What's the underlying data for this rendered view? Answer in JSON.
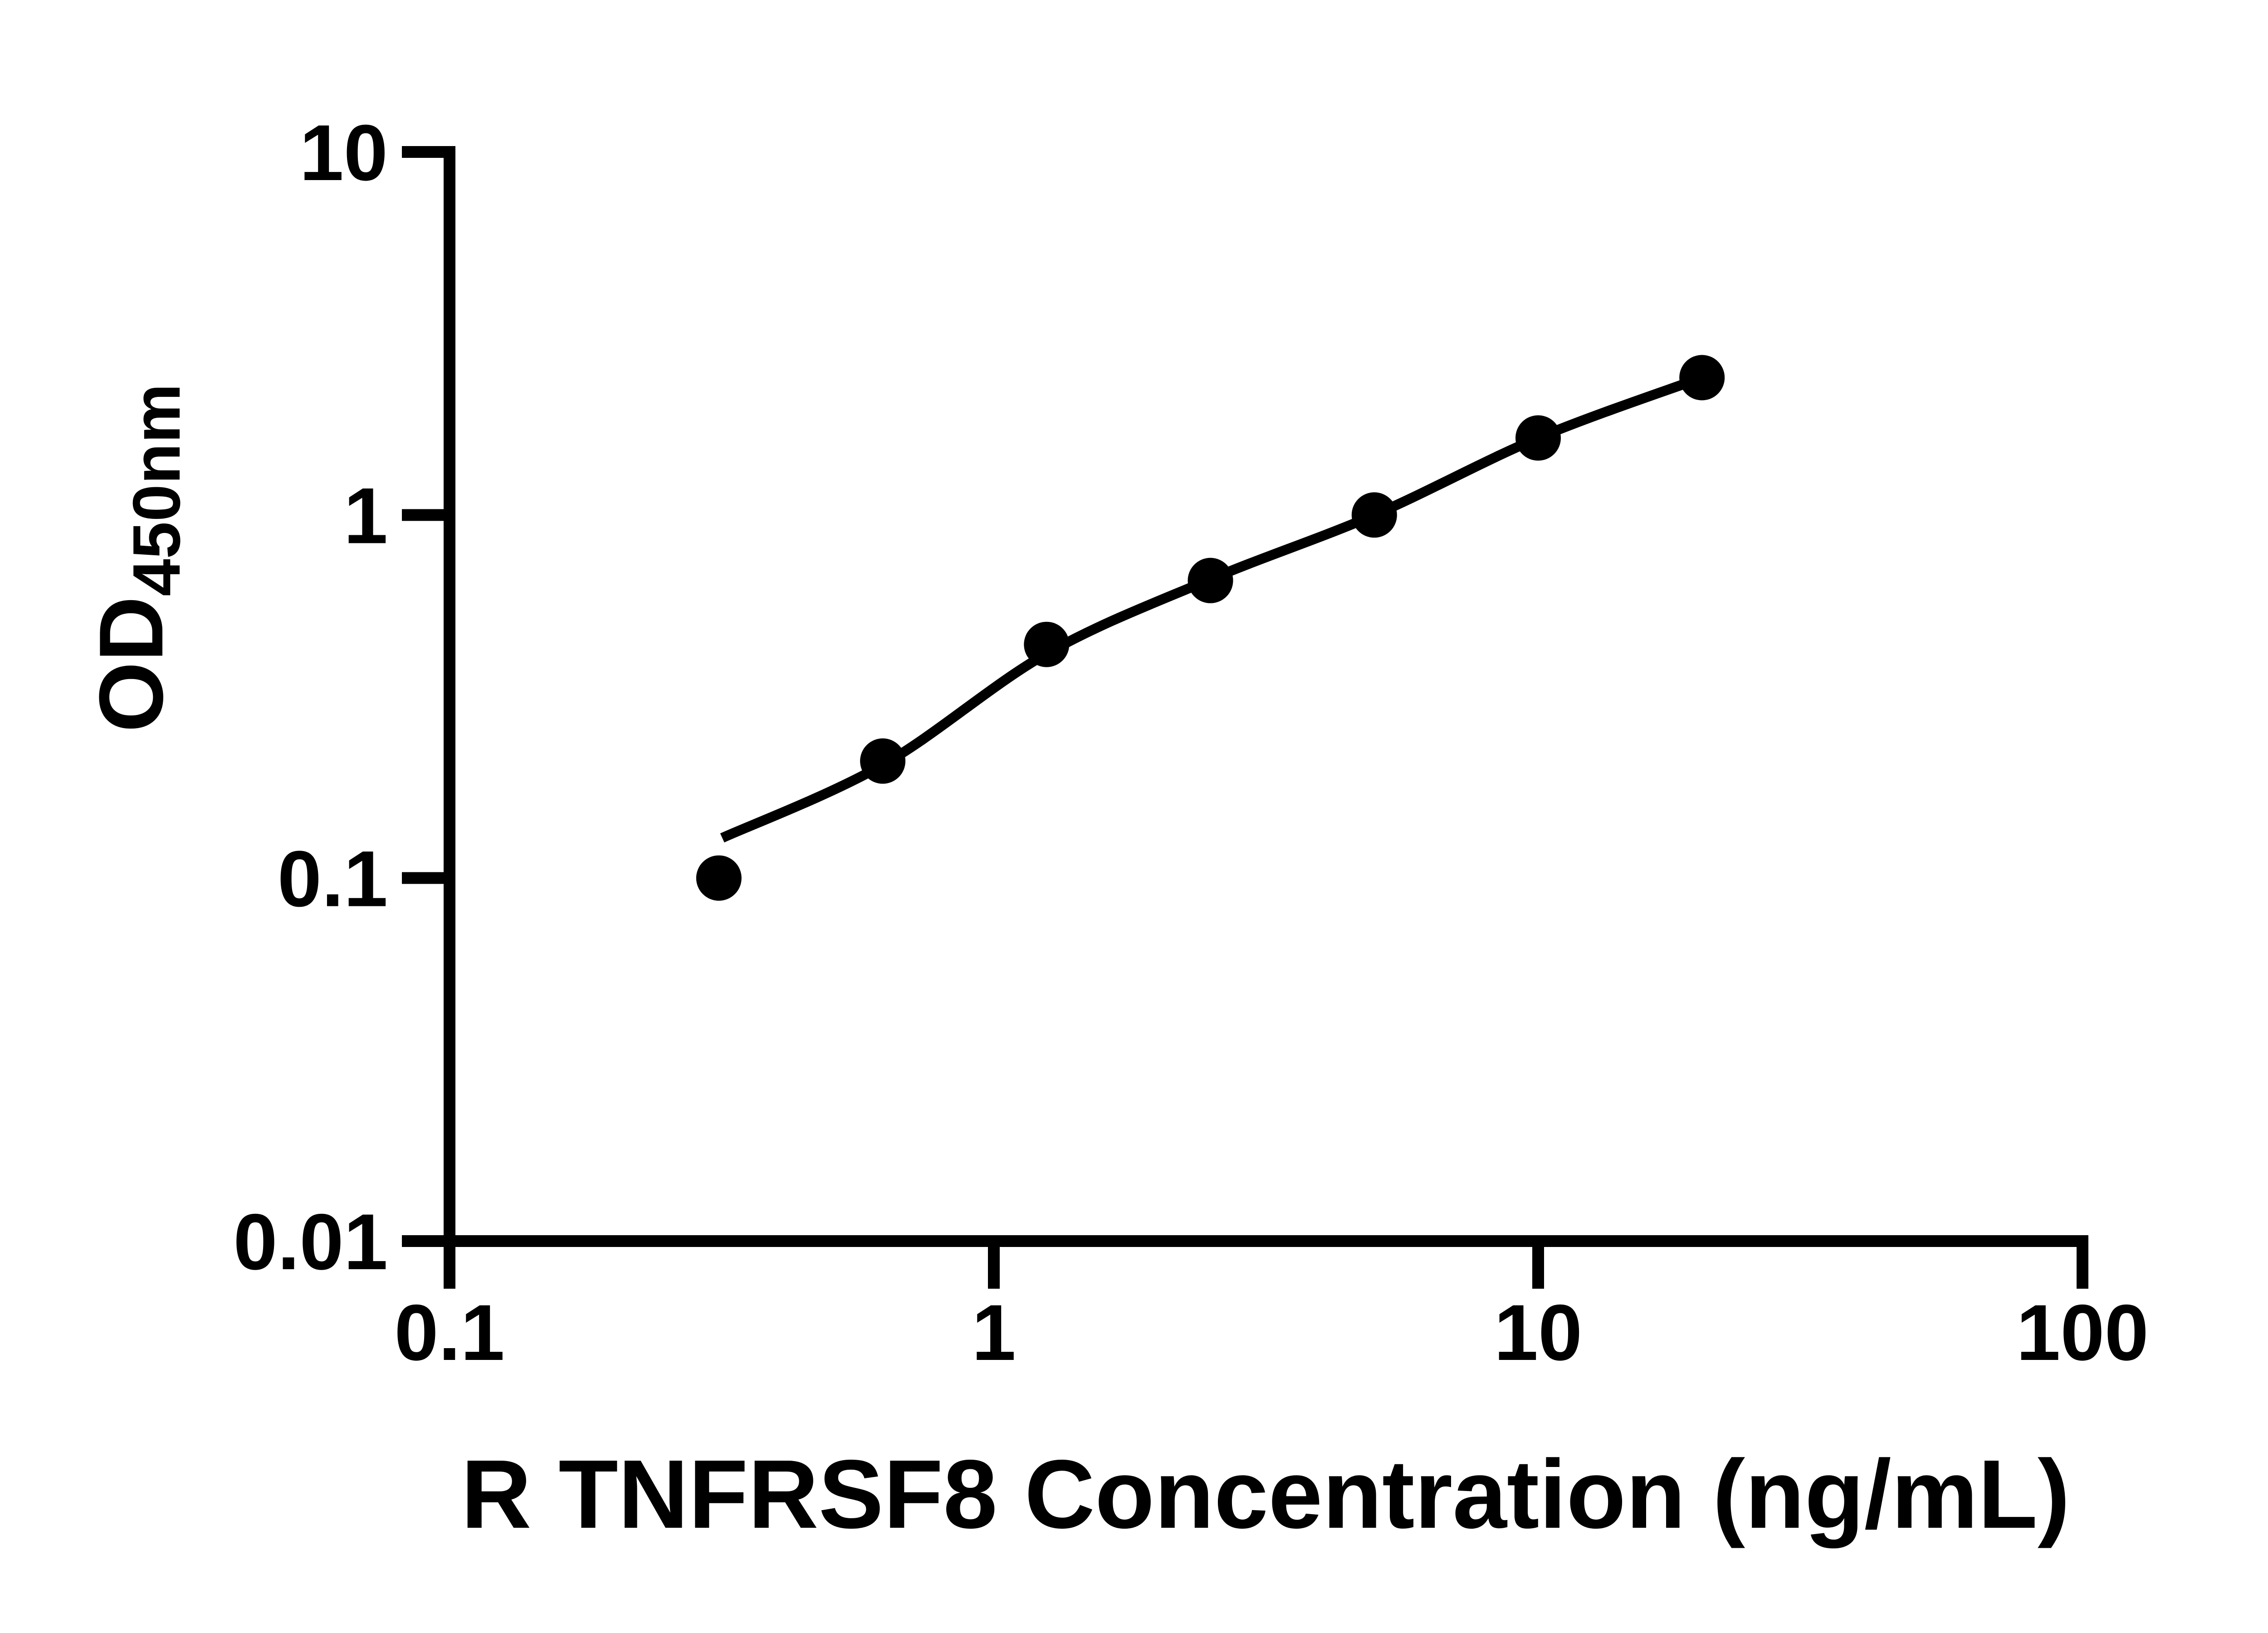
{
  "background_color": "#ffffff",
  "foreground_color": "#000000",
  "chart_data": {
    "type": "scatter",
    "title": "",
    "xlabel": "R TNFRSF8 Concentration (ng/mL)",
    "ylabel_main": "OD",
    "ylabel_sub": "450nm",
    "x_scale": "log",
    "y_scale": "log",
    "xlim": [
      0.1,
      100
    ],
    "ylim": [
      0.01,
      10
    ],
    "grid": false,
    "legend_position": "none",
    "x_ticks": [
      {
        "value": 0.1,
        "label": "0.1"
      },
      {
        "value": 1,
        "label": "1"
      },
      {
        "value": 10,
        "label": "10"
      },
      {
        "value": 100,
        "label": "100"
      }
    ],
    "y_ticks": [
      {
        "value": 10,
        "label": "10"
      },
      {
        "value": 1,
        "label": "1"
      },
      {
        "value": 0.1,
        "label": "0.1"
      },
      {
        "value": 0.01,
        "label": "0.01"
      }
    ],
    "series": [
      {
        "name": "standard-curve-points",
        "marker": "filled-circle",
        "color": "#000000",
        "points": [
          {
            "x": 0.3125,
            "y": 0.1
          },
          {
            "x": 0.625,
            "y": 0.21
          },
          {
            "x": 1.25,
            "y": 0.44
          },
          {
            "x": 2.5,
            "y": 0.66
          },
          {
            "x": 5,
            "y": 1.0
          },
          {
            "x": 10,
            "y": 1.63
          },
          {
            "x": 20,
            "y": 2.39
          }
        ]
      }
    ],
    "fit_curve": {
      "name": "four-parameter-fit-line",
      "color": "#000000",
      "points": [
        {
          "x": 0.317,
          "y": 0.129
        },
        {
          "x": 0.625,
          "y": 0.205
        },
        {
          "x": 1.25,
          "y": 0.415
        },
        {
          "x": 2.5,
          "y": 0.665
        },
        {
          "x": 5,
          "y": 1.0
        },
        {
          "x": 10,
          "y": 1.63
        },
        {
          "x": 20,
          "y": 2.39
        }
      ]
    }
  }
}
